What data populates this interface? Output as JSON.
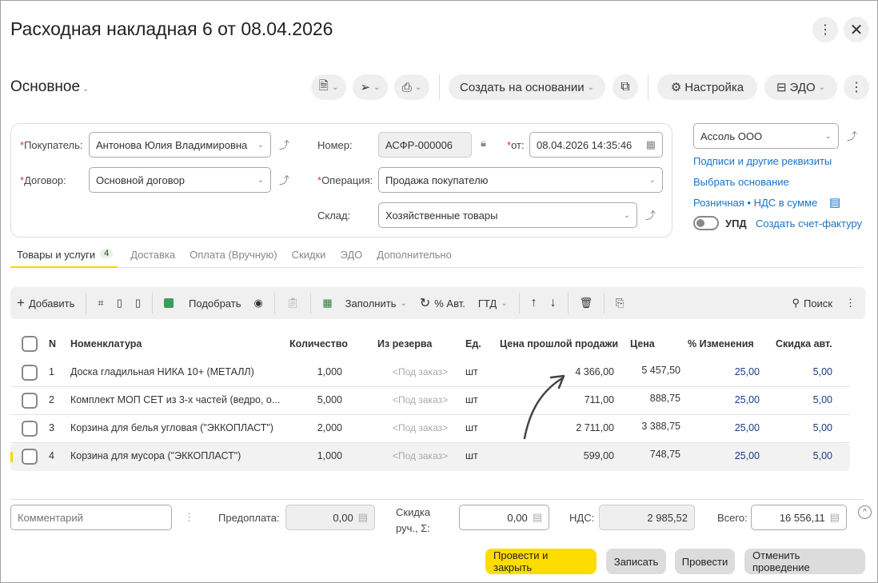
{
  "header": {
    "title": "Расходная накладная 6 от 08.04.2026",
    "section": "Основное"
  },
  "toolbar_top": {
    "create_based": "Создать на основании",
    "settings": "Настройка",
    "edo": "ЭДО"
  },
  "form": {
    "buyer_label": "Покупатель:",
    "buyer": "Антонова Юлия Владимировна",
    "contract_label": "Договор:",
    "contract": "Основной договор",
    "number_label": "Номер:",
    "number": "АСФР-000006",
    "date_label": "от:",
    "date": "08.04.2026 14:35:46",
    "operation_label": "Операция:",
    "operation": "Продажа покупателю",
    "warehouse_label": "Склад:",
    "warehouse": "Хозяйственные товары",
    "organization": "Ассоль ООО",
    "links": {
      "signatures": "Подписи и другие реквизиты",
      "choose_basis": "Выбрать основание",
      "retail": "Розничная • НДС в сумме",
      "create_invoice": "Создать счет-фактуру"
    },
    "upd_label": "УПД",
    "upd_on": false
  },
  "tabs": [
    {
      "label": "Товары и услуги",
      "badge": "4"
    },
    {
      "label": "Доставка"
    },
    {
      "label": "Оплата (Вручную)"
    },
    {
      "label": "Скидки"
    },
    {
      "label": "ЭДО"
    },
    {
      "label": "Дополнительно"
    }
  ],
  "table_toolbar": {
    "add": "Добавить",
    "pick": "Подобрать",
    "fill": "Заполнить",
    "auto_pct": "% Авт.",
    "gtd": "ГТД",
    "search": "Поиск"
  },
  "table": {
    "columns": [
      "N",
      "Номенклатура",
      "Количество",
      "Из резерва",
      "Ед.",
      "Цена прошлой продажи",
      "Цена",
      "% Изменения",
      "Скидка авт."
    ],
    "rows": [
      {
        "n": "1",
        "name": "Доска гладильная  НИКА 10+ (МЕТАЛЛ)",
        "qty": "1,000",
        "reserve": "<Под заказ>",
        "unit": "шт",
        "last_price": "4 366,00",
        "price": "5 457,50",
        "change": "25,00",
        "discount": "5,00"
      },
      {
        "n": "2",
        "name": "Комплект МОП СЕТ из 3-х частей (ведро, о...",
        "qty": "5,000",
        "reserve": "<Под заказ>",
        "unit": "шт",
        "last_price": "711,00",
        "price": "888,75",
        "change": "25,00",
        "discount": "5,00"
      },
      {
        "n": "3",
        "name": "Корзина для белья угловая (\"ЭККОПЛАСТ\")",
        "qty": "2,000",
        "reserve": "<Под заказ>",
        "unit": "шт",
        "last_price": "2 711,00",
        "price": "3 388,75",
        "change": "25,00",
        "discount": "5,00"
      },
      {
        "n": "4",
        "name": "Корзина для мусора (\"ЭККОПЛАСТ\")",
        "qty": "1,000",
        "reserve": "<Под заказ>",
        "unit": "шт",
        "last_price": "599,00",
        "price": "748,75",
        "change": "25,00",
        "discount": "5,00"
      }
    ]
  },
  "footer": {
    "comment_placeholder": "Комментарий",
    "prepay_label": "Предоплата:",
    "prepay": "0,00",
    "discount_label1": "Скидка",
    "discount_label2": "руч., Σ:",
    "discount": "0,00",
    "vat_label": "НДС:",
    "vat": "2 985,52",
    "total_label": "Всего:",
    "total": "16 556,11"
  },
  "buttons": {
    "post_close": "Провести и закрыть",
    "save": "Записать",
    "post": "Провести",
    "unpost": "Отменить проведение"
  },
  "colors": {
    "accent": "#ffdc00",
    "link": "#1a73c8"
  }
}
